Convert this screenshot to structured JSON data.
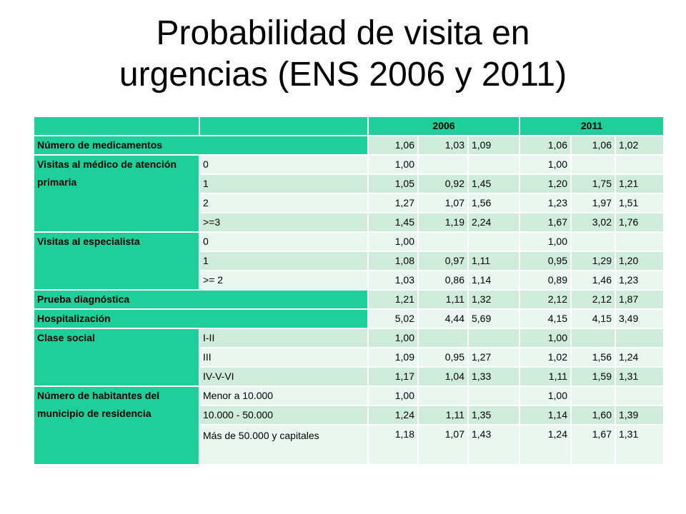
{
  "title_line1": "Probabilidad de visita en",
  "title_line2": "urgencias (ENS 2006 y 2011)",
  "table": {
    "header_2006": "2006",
    "header_2011": "2011",
    "medicamentos": {
      "label": "Número de medicamentos",
      "v": [
        "1,06",
        "1,03",
        "1,09",
        "1,06",
        "1,06",
        "1,02"
      ]
    },
    "primaria": {
      "label": "Visitas al médico de atención primaria",
      "rows": [
        {
          "cat": "0",
          "v": [
            "1,00",
            "",
            "",
            "1,00",
            "",
            ""
          ]
        },
        {
          "cat": "1",
          "v": [
            "1,05",
            "0,92",
            "1,45",
            "1,20",
            "1,75",
            "1,21"
          ]
        },
        {
          "cat": "2",
          "v": [
            "1,27",
            "1,07",
            "1,56",
            "1,23",
            "1,97",
            "1,51"
          ]
        },
        {
          "cat": ">=3",
          "v": [
            "1,45",
            "1,19",
            "2,24",
            "1,67",
            "3,02",
            "1,76"
          ]
        }
      ]
    },
    "especialista": {
      "label": "Visitas al especialista",
      "rows": [
        {
          "cat": "0",
          "v": [
            "1,00",
            "",
            "",
            "1,00",
            "",
            ""
          ]
        },
        {
          "cat": "1",
          "v": [
            "1,08",
            "0,97",
            "1,11",
            "0,95",
            "1,29",
            "1,20"
          ]
        },
        {
          "cat": ">= 2",
          "v": [
            "1,03",
            "0,86",
            "1,14",
            "0,89",
            "1,46",
            "1,23"
          ]
        }
      ]
    },
    "prueba": {
      "label": "Prueba diagnóstica",
      "v": [
        "1,21",
        "1,11",
        "1,32",
        "2,12",
        "2,12",
        "1,87"
      ]
    },
    "hospitalizacion": {
      "label": "Hospitalización",
      "v": [
        "5,02",
        "4,44",
        "5,69",
        "4,15",
        "4,15",
        "3,49"
      ]
    },
    "clase": {
      "label": "Clase social",
      "rows": [
        {
          "cat": "I-II",
          "v": [
            "1,00",
            "",
            "",
            "1,00",
            "",
            ""
          ]
        },
        {
          "cat": "III",
          "v": [
            "1,09",
            "0,95",
            "1,27",
            "1,02",
            "1,56",
            "1,24"
          ]
        },
        {
          "cat": "IV-V-VI",
          "v": [
            "1,17",
            "1,04",
            "1,33",
            "1,11",
            "1,59",
            "1,31"
          ]
        }
      ]
    },
    "habitantes": {
      "label": "Número de habitantes del municipio de residencia",
      "rows": [
        {
          "cat": "Menor a 10.000",
          "v": [
            "1,00",
            "",
            "",
            "1,00",
            "",
            ""
          ]
        },
        {
          "cat": "10.000 - 50.000",
          "v": [
            "1,24",
            "1,11",
            "1,35",
            "1,14",
            "1,60",
            "1,39"
          ]
        },
        {
          "cat": "Más de 50.000 y capitales",
          "v": [
            "1,18",
            "1,07",
            "1,43",
            "1,24",
            "1,67",
            "1,31"
          ]
        }
      ]
    }
  }
}
